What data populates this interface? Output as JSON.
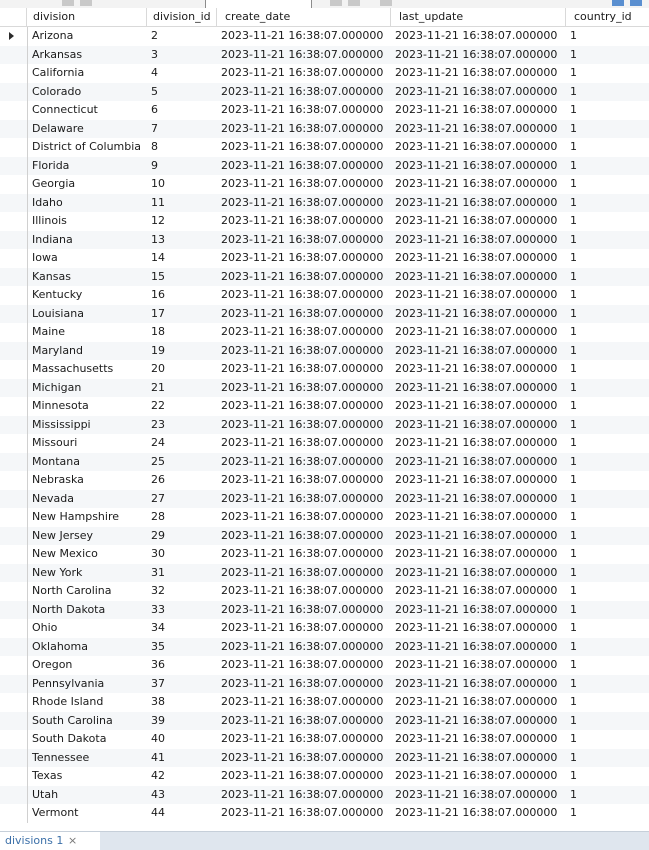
{
  "columns": {
    "division": "division",
    "division_id": "division_id",
    "create_date": "create_date",
    "last_update": "last_update",
    "country_id": "country_id"
  },
  "rows": [
    [
      "Arizona",
      "2",
      "2023-11-21 16:38:07.000000",
      "2023-11-21 16:38:07.000000",
      "1"
    ],
    [
      "Arkansas",
      "3",
      "2023-11-21 16:38:07.000000",
      "2023-11-21 16:38:07.000000",
      "1"
    ],
    [
      "California",
      "4",
      "2023-11-21 16:38:07.000000",
      "2023-11-21 16:38:07.000000",
      "1"
    ],
    [
      "Colorado",
      "5",
      "2023-11-21 16:38:07.000000",
      "2023-11-21 16:38:07.000000",
      "1"
    ],
    [
      "Connecticut",
      "6",
      "2023-11-21 16:38:07.000000",
      "2023-11-21 16:38:07.000000",
      "1"
    ],
    [
      "Delaware",
      "7",
      "2023-11-21 16:38:07.000000",
      "2023-11-21 16:38:07.000000",
      "1"
    ],
    [
      "District of Columbia",
      "8",
      "2023-11-21 16:38:07.000000",
      "2023-11-21 16:38:07.000000",
      "1"
    ],
    [
      "Florida",
      "9",
      "2023-11-21 16:38:07.000000",
      "2023-11-21 16:38:07.000000",
      "1"
    ],
    [
      "Georgia",
      "10",
      "2023-11-21 16:38:07.000000",
      "2023-11-21 16:38:07.000000",
      "1"
    ],
    [
      "Idaho",
      "11",
      "2023-11-21 16:38:07.000000",
      "2023-11-21 16:38:07.000000",
      "1"
    ],
    [
      "Illinois",
      "12",
      "2023-11-21 16:38:07.000000",
      "2023-11-21 16:38:07.000000",
      "1"
    ],
    [
      "Indiana",
      "13",
      "2023-11-21 16:38:07.000000",
      "2023-11-21 16:38:07.000000",
      "1"
    ],
    [
      "Iowa",
      "14",
      "2023-11-21 16:38:07.000000",
      "2023-11-21 16:38:07.000000",
      "1"
    ],
    [
      "Kansas",
      "15",
      "2023-11-21 16:38:07.000000",
      "2023-11-21 16:38:07.000000",
      "1"
    ],
    [
      "Kentucky",
      "16",
      "2023-11-21 16:38:07.000000",
      "2023-11-21 16:38:07.000000",
      "1"
    ],
    [
      "Louisiana",
      "17",
      "2023-11-21 16:38:07.000000",
      "2023-11-21 16:38:07.000000",
      "1"
    ],
    [
      "Maine",
      "18",
      "2023-11-21 16:38:07.000000",
      "2023-11-21 16:38:07.000000",
      "1"
    ],
    [
      "Maryland",
      "19",
      "2023-11-21 16:38:07.000000",
      "2023-11-21 16:38:07.000000",
      "1"
    ],
    [
      "Massachusetts",
      "20",
      "2023-11-21 16:38:07.000000",
      "2023-11-21 16:38:07.000000",
      "1"
    ],
    [
      "Michigan",
      "21",
      "2023-11-21 16:38:07.000000",
      "2023-11-21 16:38:07.000000",
      "1"
    ],
    [
      "Minnesota",
      "22",
      "2023-11-21 16:38:07.000000",
      "2023-11-21 16:38:07.000000",
      "1"
    ],
    [
      "Mississippi",
      "23",
      "2023-11-21 16:38:07.000000",
      "2023-11-21 16:38:07.000000",
      "1"
    ],
    [
      "Missouri",
      "24",
      "2023-11-21 16:38:07.000000",
      "2023-11-21 16:38:07.000000",
      "1"
    ],
    [
      "Montana",
      "25",
      "2023-11-21 16:38:07.000000",
      "2023-11-21 16:38:07.000000",
      "1"
    ],
    [
      "Nebraska",
      "26",
      "2023-11-21 16:38:07.000000",
      "2023-11-21 16:38:07.000000",
      "1"
    ],
    [
      "Nevada",
      "27",
      "2023-11-21 16:38:07.000000",
      "2023-11-21 16:38:07.000000",
      "1"
    ],
    [
      "New Hampshire",
      "28",
      "2023-11-21 16:38:07.000000",
      "2023-11-21 16:38:07.000000",
      "1"
    ],
    [
      "New Jersey",
      "29",
      "2023-11-21 16:38:07.000000",
      "2023-11-21 16:38:07.000000",
      "1"
    ],
    [
      "New Mexico",
      "30",
      "2023-11-21 16:38:07.000000",
      "2023-11-21 16:38:07.000000",
      "1"
    ],
    [
      "New York",
      "31",
      "2023-11-21 16:38:07.000000",
      "2023-11-21 16:38:07.000000",
      "1"
    ],
    [
      "North Carolina",
      "32",
      "2023-11-21 16:38:07.000000",
      "2023-11-21 16:38:07.000000",
      "1"
    ],
    [
      "North Dakota",
      "33",
      "2023-11-21 16:38:07.000000",
      "2023-11-21 16:38:07.000000",
      "1"
    ],
    [
      "Ohio",
      "34",
      "2023-11-21 16:38:07.000000",
      "2023-11-21 16:38:07.000000",
      "1"
    ],
    [
      "Oklahoma",
      "35",
      "2023-11-21 16:38:07.000000",
      "2023-11-21 16:38:07.000000",
      "1"
    ],
    [
      "Oregon",
      "36",
      "2023-11-21 16:38:07.000000",
      "2023-11-21 16:38:07.000000",
      "1"
    ],
    [
      "Pennsylvania",
      "37",
      "2023-11-21 16:38:07.000000",
      "2023-11-21 16:38:07.000000",
      "1"
    ],
    [
      "Rhode Island",
      "38",
      "2023-11-21 16:38:07.000000",
      "2023-11-21 16:38:07.000000",
      "1"
    ],
    [
      "South Carolina",
      "39",
      "2023-11-21 16:38:07.000000",
      "2023-11-21 16:38:07.000000",
      "1"
    ],
    [
      "South Dakota",
      "40",
      "2023-11-21 16:38:07.000000",
      "2023-11-21 16:38:07.000000",
      "1"
    ],
    [
      "Tennessee",
      "41",
      "2023-11-21 16:38:07.000000",
      "2023-11-21 16:38:07.000000",
      "1"
    ],
    [
      "Texas",
      "42",
      "2023-11-21 16:38:07.000000",
      "2023-11-21 16:38:07.000000",
      "1"
    ],
    [
      "Utah",
      "43",
      "2023-11-21 16:38:07.000000",
      "2023-11-21 16:38:07.000000",
      "1"
    ],
    [
      "Vermont",
      "44",
      "2023-11-21 16:38:07.000000",
      "2023-11-21 16:38:07.000000",
      "1"
    ]
  ],
  "current_row_index": 0,
  "tabs": [
    {
      "label": "divisions 1",
      "close": "×"
    }
  ],
  "colors": {
    "tab_text": "#3b6fa8",
    "row_stripe": "#f5f7f9",
    "tabbar_bg": "#dfe6ee"
  }
}
